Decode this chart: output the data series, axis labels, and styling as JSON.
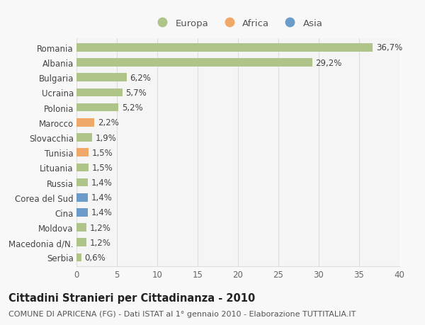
{
  "categories": [
    "Romania",
    "Albania",
    "Bulgaria",
    "Ucraina",
    "Polonia",
    "Marocco",
    "Slovacchia",
    "Tunisia",
    "Lituania",
    "Russia",
    "Corea del Sud",
    "Cina",
    "Moldova",
    "Macedonia d/N.",
    "Serbia"
  ],
  "values": [
    36.7,
    29.2,
    6.2,
    5.7,
    5.2,
    2.2,
    1.9,
    1.5,
    1.5,
    1.4,
    1.4,
    1.4,
    1.2,
    1.2,
    0.6
  ],
  "labels": [
    "36,7%",
    "29,2%",
    "6,2%",
    "5,7%",
    "5,2%",
    "2,2%",
    "1,9%",
    "1,5%",
    "1,5%",
    "1,4%",
    "1,4%",
    "1,4%",
    "1,2%",
    "1,2%",
    "0,6%"
  ],
  "continents": [
    "Europa",
    "Europa",
    "Europa",
    "Europa",
    "Europa",
    "Africa",
    "Europa",
    "Africa",
    "Europa",
    "Europa",
    "Asia",
    "Asia",
    "Europa",
    "Europa",
    "Europa"
  ],
  "colors": {
    "Europa": "#aec488",
    "Africa": "#f0a868",
    "Asia": "#6b9bc8"
  },
  "xlim": [
    0,
    40
  ],
  "xticks": [
    0,
    5,
    10,
    15,
    20,
    25,
    30,
    35,
    40
  ],
  "title": "Cittadini Stranieri per Cittadinanza - 2010",
  "subtitle": "COMUNE DI APRICENA (FG) - Dati ISTAT al 1° gennaio 2010 - Elaborazione TUTTITALIA.IT",
  "background_color": "#f8f8f8",
  "plot_bg_color": "#f5f5f5",
  "grid_color": "#dddddd",
  "bar_height": 0.55,
  "label_fontsize": 8.5,
  "tick_fontsize": 8.5,
  "title_fontsize": 10.5,
  "subtitle_fontsize": 8
}
